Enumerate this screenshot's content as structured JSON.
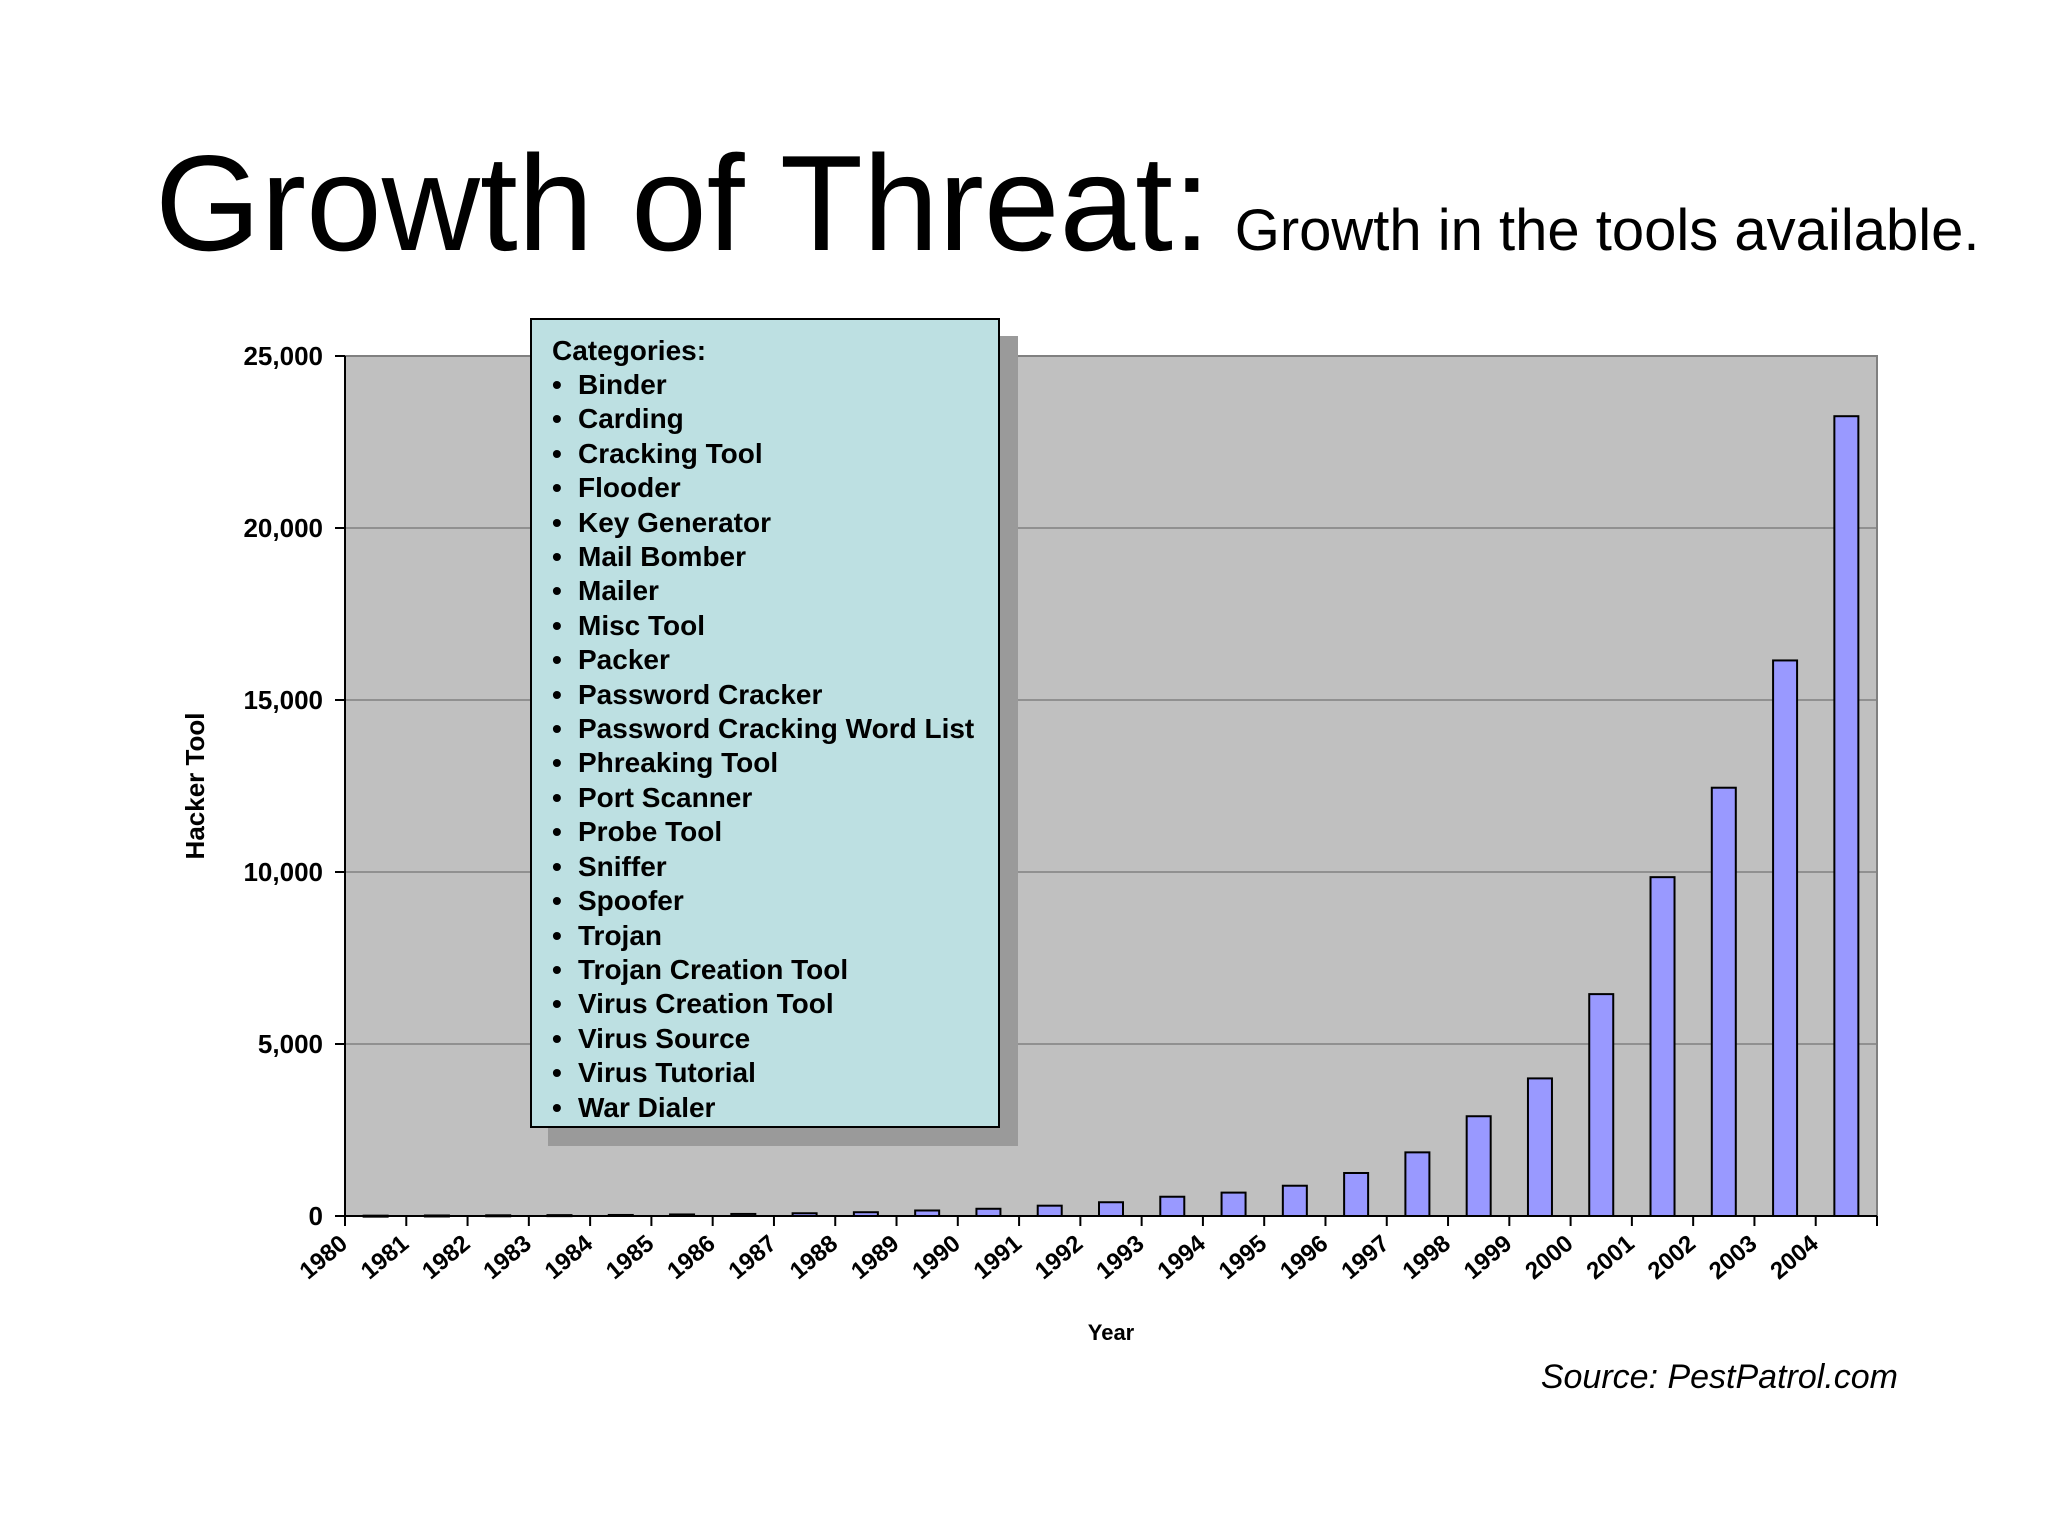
{
  "slide": {
    "title": "Growth of Threat:",
    "subtitle": "Growth in the tools available.",
    "source": "Source: PestPatrol.com"
  },
  "legend": {
    "title": "Categories:",
    "bullet": "•",
    "items": [
      "Binder",
      "Carding",
      "Cracking Tool",
      "Flooder",
      "Key Generator",
      "Mail Bomber",
      "Mailer",
      "Misc Tool",
      "Packer",
      "Password Cracker",
      "Password Cracking Word List",
      "Phreaking Tool",
      "Port Scanner",
      "Probe Tool",
      "Sniffer",
      "Spoofer",
      "Trojan",
      "Trojan Creation Tool",
      "Virus Creation Tool",
      "Virus Source",
      "Virus Tutorial",
      "War Dialer"
    ]
  },
  "colors": {
    "plot_bg": "#c0c0c0",
    "bar_fill": "#9999ff",
    "bar_stroke": "#000000",
    "grid": "#808080",
    "legend_bg": "#bde0e2"
  },
  "chart_data": {
    "type": "bar",
    "xlabel": "Year",
    "ylabel": "Hacker Tool",
    "ylim": [
      0,
      25000
    ],
    "yticks": [
      0,
      5000,
      10000,
      15000,
      20000,
      25000
    ],
    "ytick_labels": [
      "0",
      "5,000",
      "10,000",
      "15,000",
      "20,000",
      "25,000"
    ],
    "grid": true,
    "legend_position": "top-left",
    "categories": [
      "1980",
      "1981",
      "1982",
      "1983",
      "1984",
      "1985",
      "1986",
      "1987",
      "1988",
      "1989",
      "1990",
      "1991",
      "1992",
      "1993",
      "1994",
      "1995",
      "1996",
      "1997",
      "1998",
      "1999",
      "2000",
      "2001",
      "2002",
      "2003",
      "2004"
    ],
    "values": [
      10,
      15,
      20,
      25,
      30,
      45,
      60,
      80,
      110,
      160,
      210,
      300,
      400,
      560,
      680,
      880,
      1250,
      1850,
      2900,
      4000,
      6450,
      9850,
      12450,
      16150,
      23250
    ]
  }
}
